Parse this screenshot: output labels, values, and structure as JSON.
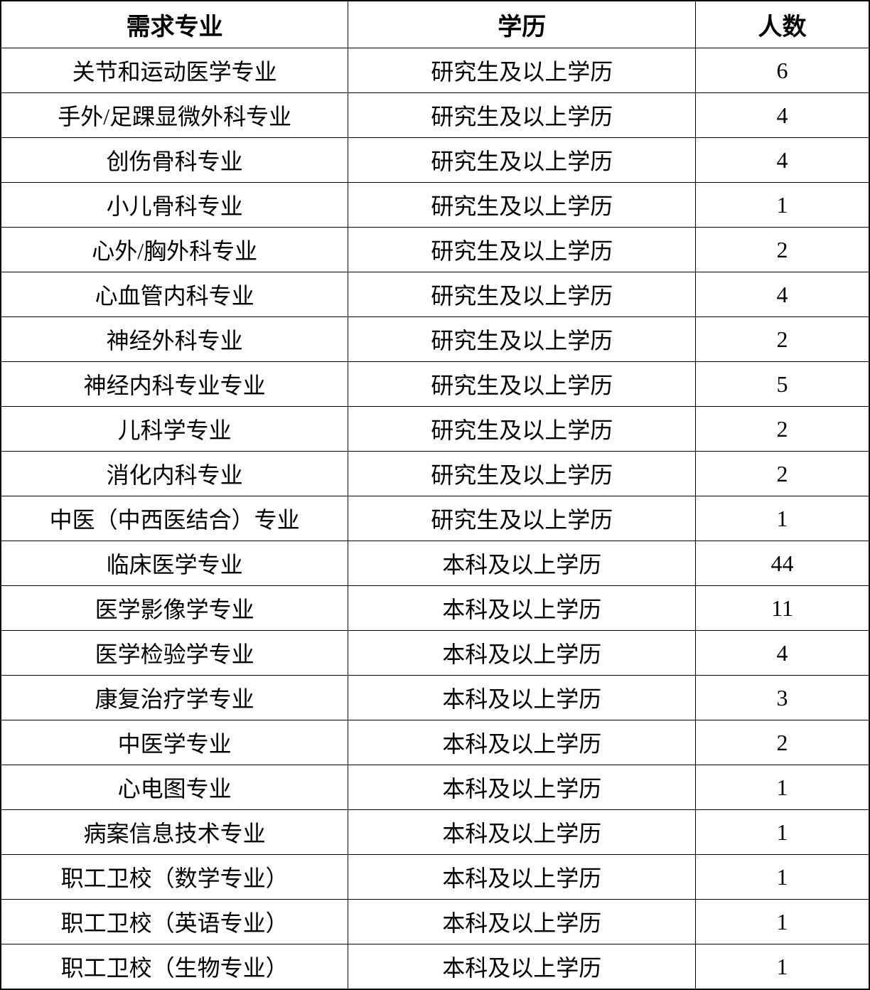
{
  "table": {
    "type": "table",
    "background_color": "#ffffff",
    "border_color": "#000000",
    "text_color": "#000000",
    "header_fontsize": 34,
    "cell_fontsize": 32,
    "header_fontweight": "bold",
    "columns": [
      {
        "key": "major",
        "label": "需求专业",
        "width": "40%",
        "align": "center"
      },
      {
        "key": "education",
        "label": "学历",
        "width": "40%",
        "align": "center"
      },
      {
        "key": "count",
        "label": "人数",
        "width": "20%",
        "align": "center"
      }
    ],
    "rows": [
      {
        "major": "关节和运动医学专业",
        "education": "研究生及以上学历",
        "count": "6"
      },
      {
        "major": "手外/足踝显微外科专业",
        "education": "研究生及以上学历",
        "count": "4"
      },
      {
        "major": "创伤骨科专业",
        "education": "研究生及以上学历",
        "count": "4"
      },
      {
        "major": "小儿骨科专业",
        "education": "研究生及以上学历",
        "count": "1"
      },
      {
        "major": "心外/胸外科专业",
        "education": "研究生及以上学历",
        "count": "2"
      },
      {
        "major": "心血管内科专业",
        "education": "研究生及以上学历",
        "count": "4"
      },
      {
        "major": "神经外科专业",
        "education": "研究生及以上学历",
        "count": "2"
      },
      {
        "major": "神经内科专业专业",
        "education": "研究生及以上学历",
        "count": "5"
      },
      {
        "major": "儿科学专业",
        "education": "研究生及以上学历",
        "count": "2"
      },
      {
        "major": "消化内科专业",
        "education": "研究生及以上学历",
        "count": "2"
      },
      {
        "major": "中医（中西医结合）专业",
        "education": "研究生及以上学历",
        "count": "1"
      },
      {
        "major": "临床医学专业",
        "education": "本科及以上学历",
        "count": "44"
      },
      {
        "major": "医学影像学专业",
        "education": "本科及以上学历",
        "count": "11"
      },
      {
        "major": "医学检验学专业",
        "education": "本科及以上学历",
        "count": "4"
      },
      {
        "major": "康复治疗学专业",
        "education": "本科及以上学历",
        "count": "3"
      },
      {
        "major": "中医学专业",
        "education": "本科及以上学历",
        "count": "2"
      },
      {
        "major": "心电图专业",
        "education": "本科及以上学历",
        "count": "1"
      },
      {
        "major": "病案信息技术专业",
        "education": "本科及以上学历",
        "count": "1"
      },
      {
        "major": "职工卫校（数学专业）",
        "education": "本科及以上学历",
        "count": "1"
      },
      {
        "major": "职工卫校（英语专业）",
        "education": "本科及以上学历",
        "count": "1"
      },
      {
        "major": "职工卫校（生物专业）",
        "education": "本科及以上学历",
        "count": "1"
      }
    ]
  }
}
